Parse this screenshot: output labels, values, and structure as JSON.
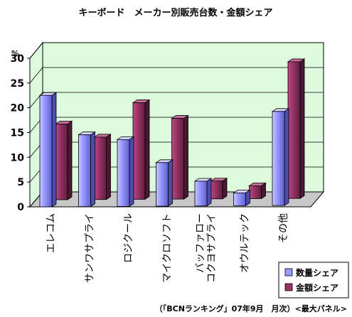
{
  "chart_data": {
    "type": "bar",
    "title": "キーボード　メーカー別販売台数・金額シェア",
    "unit": "%",
    "categories": [
      "エレコム",
      "サンワサプライ",
      "ロジクール",
      "マイクロソフト",
      "バッファロー\nコクヨサプライ",
      "オウルテック",
      "その他"
    ],
    "series": [
      {
        "name": "数量シェア",
        "color": "#9999ff",
        "values": [
          22.5,
          14.5,
          13.5,
          8.8,
          5.0,
          2.6,
          19.0
        ]
      },
      {
        "name": "金額シェア",
        "color": "#993366",
        "values": [
          15.3,
          12.6,
          19.5,
          16.3,
          3.6,
          2.6,
          27.6
        ]
      }
    ],
    "yticks": [
      "0",
      "5",
      "10",
      "15",
      "20",
      "25",
      "30"
    ],
    "ylim": [
      0,
      30
    ],
    "grid": true,
    "legend_position": "bottom-right",
    "source": "（「BCNランキング」07年9月　月次）<最大パネル>"
  }
}
